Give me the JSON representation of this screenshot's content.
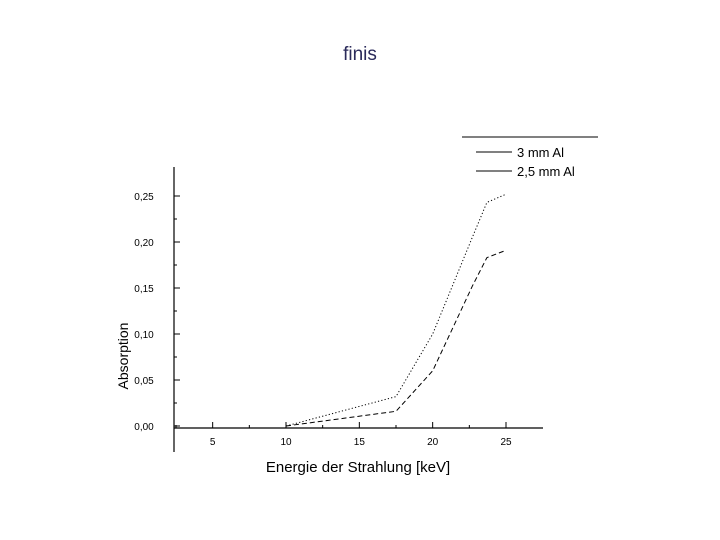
{
  "slide": {
    "title": "finis"
  },
  "chart_data": {
    "type": "line",
    "xlabel": "Energie der Strahlung [keV]",
    "ylabel": "Absorption",
    "xlim": [
      0,
      26
    ],
    "ylim": [
      0,
      0.26
    ],
    "x_ticks": [
      5,
      10,
      15,
      20,
      25
    ],
    "x_tick_labels": [
      "5",
      "10",
      "15",
      "20",
      "25"
    ],
    "y_ticks": [
      0,
      0.05,
      0.1,
      0.15,
      0.2,
      0.25
    ],
    "y_tick_labels": [
      "0,00",
      "0,05",
      "0,10",
      "0,15",
      "0,20",
      "0,25"
    ],
    "legend_position": "top-right",
    "series": [
      {
        "name": "3 mm Al",
        "color": "#000000",
        "dash": "dotted",
        "x": [
          10,
          17.5,
          20,
          22.7,
          23.7,
          25
        ],
        "y": [
          0.0,
          0.032,
          0.1,
          0.205,
          0.243,
          0.252
        ]
      },
      {
        "name": "2,5 mm Al",
        "color": "#000000",
        "dash": "dashed",
        "x": [
          10,
          17.5,
          20,
          22.7,
          23.7,
          25
        ],
        "y": [
          0.0,
          0.016,
          0.06,
          0.152,
          0.183,
          0.191
        ]
      }
    ]
  }
}
